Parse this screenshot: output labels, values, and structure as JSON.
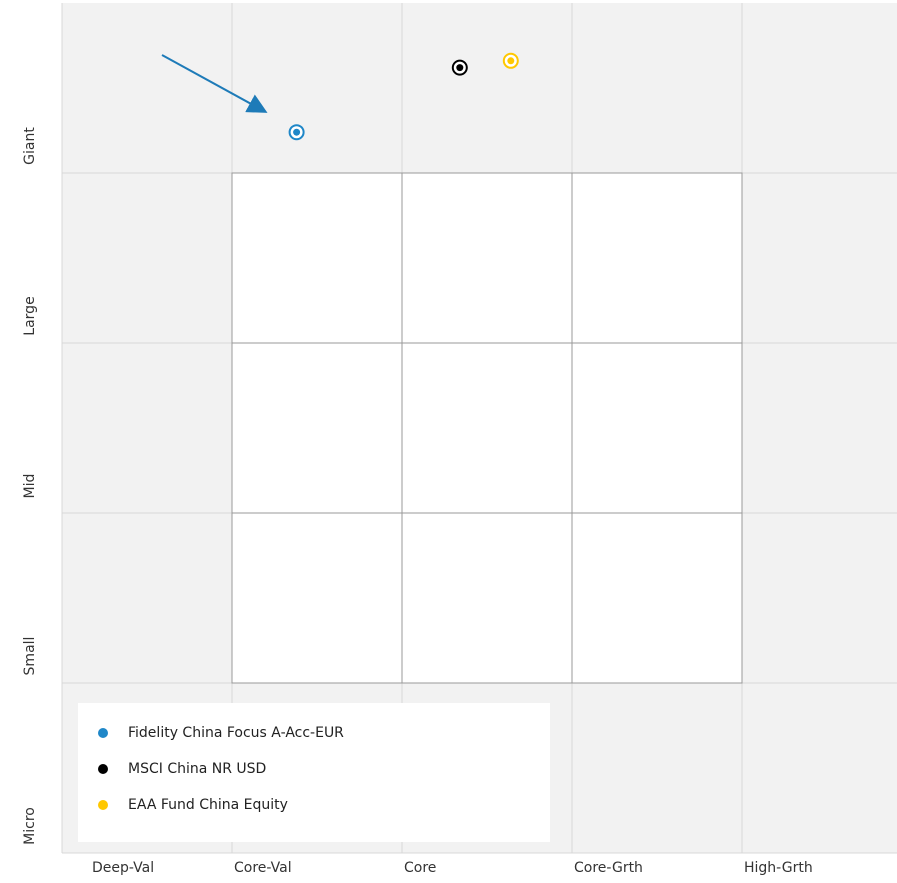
{
  "chart_data": {
    "type": "scatter",
    "xlim": [
      0,
      5
    ],
    "ylim": [
      0,
      5
    ],
    "xticks": [
      {
        "value": 0,
        "label": "Deep-Val"
      },
      {
        "value": 1,
        "label": "Core-Val"
      },
      {
        "value": 2,
        "label": "Core"
      },
      {
        "value": 3,
        "label": "Core-Grth"
      },
      {
        "value": 4,
        "label": "High-Grth"
      }
    ],
    "yticks": [
      {
        "value": 0,
        "label": "Micro"
      },
      {
        "value": 1,
        "label": "Small"
      },
      {
        "value": 2,
        "label": "Mid"
      },
      {
        "value": 3,
        "label": "Large"
      },
      {
        "value": 4,
        "label": "Giant"
      }
    ],
    "grid": true,
    "legend": "lower left",
    "series": [
      {
        "name": "Fidelity China Focus A-Acc-EUR",
        "color": "#1f87c8",
        "x": [
          1.38
        ],
        "values": [
          4.24
        ]
      },
      {
        "name": "MSCI China NR USD",
        "color": "#000000",
        "x": [
          2.34
        ],
        "values": [
          4.62
        ]
      },
      {
        "name": "EAA Fund China Equity",
        "color": "#ffc800",
        "x": [
          2.64
        ],
        "values": [
          4.66
        ]
      }
    ]
  }
}
